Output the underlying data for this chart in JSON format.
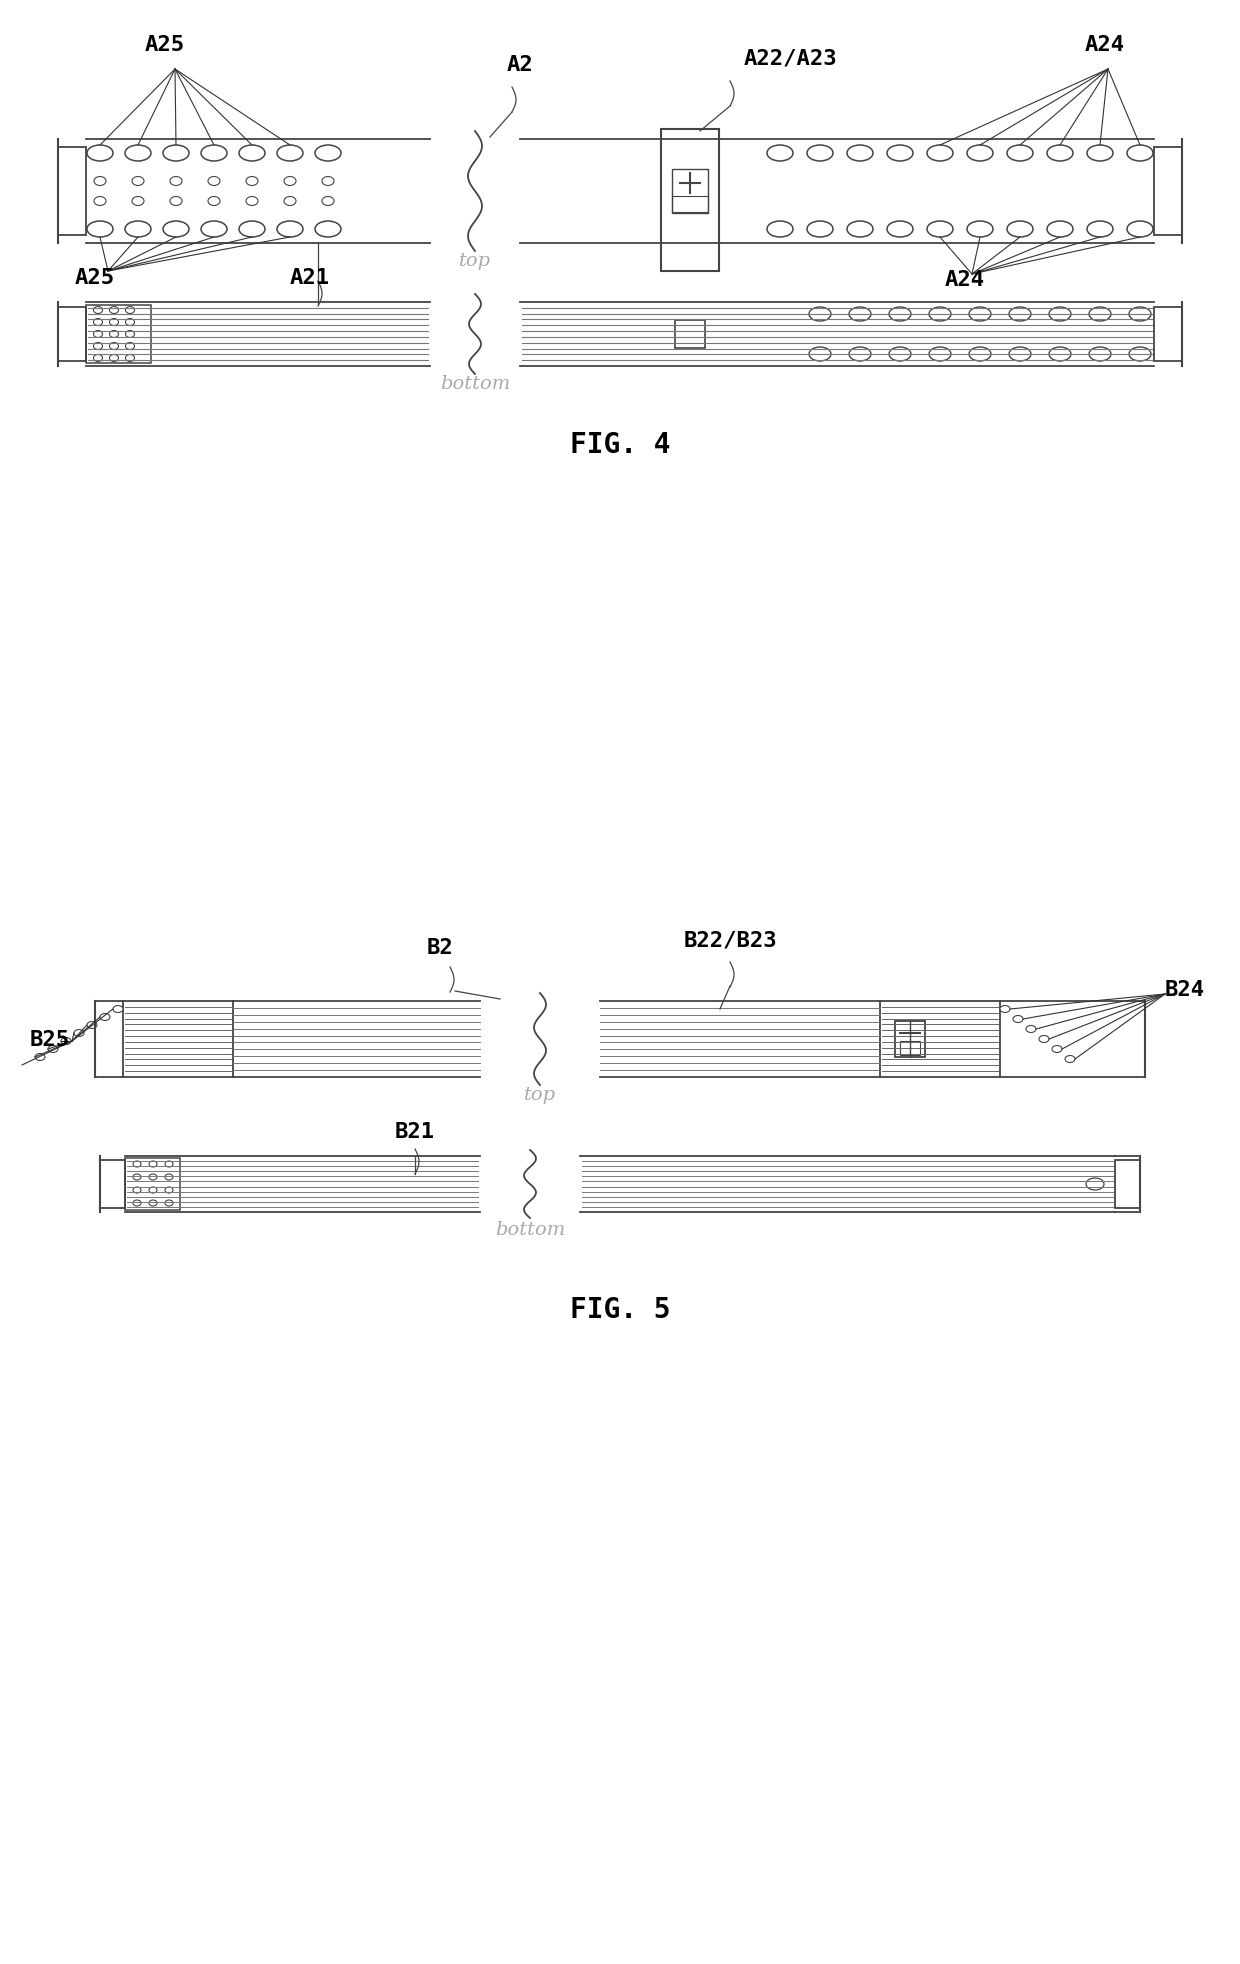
{
  "fig_color": "#ffffff",
  "line_color": "#444444",
  "label_color": "#aaaaaa",
  "text_color": "#000000",
  "fig4_label": "FIG. 4",
  "fig5_label": "FIG. 5",
  "top_label": "top",
  "bottom_label": "bottom",
  "A2_label": "A2",
  "A21_label": "A21",
  "A22_23_label": "A22/A23",
  "A24_label": "A24",
  "A25_label": "A25",
  "B2_label": "B2",
  "B21_label": "B21",
  "B22_23_label": "B22/B23",
  "B24_label": "B24",
  "B25_label": "B25"
}
